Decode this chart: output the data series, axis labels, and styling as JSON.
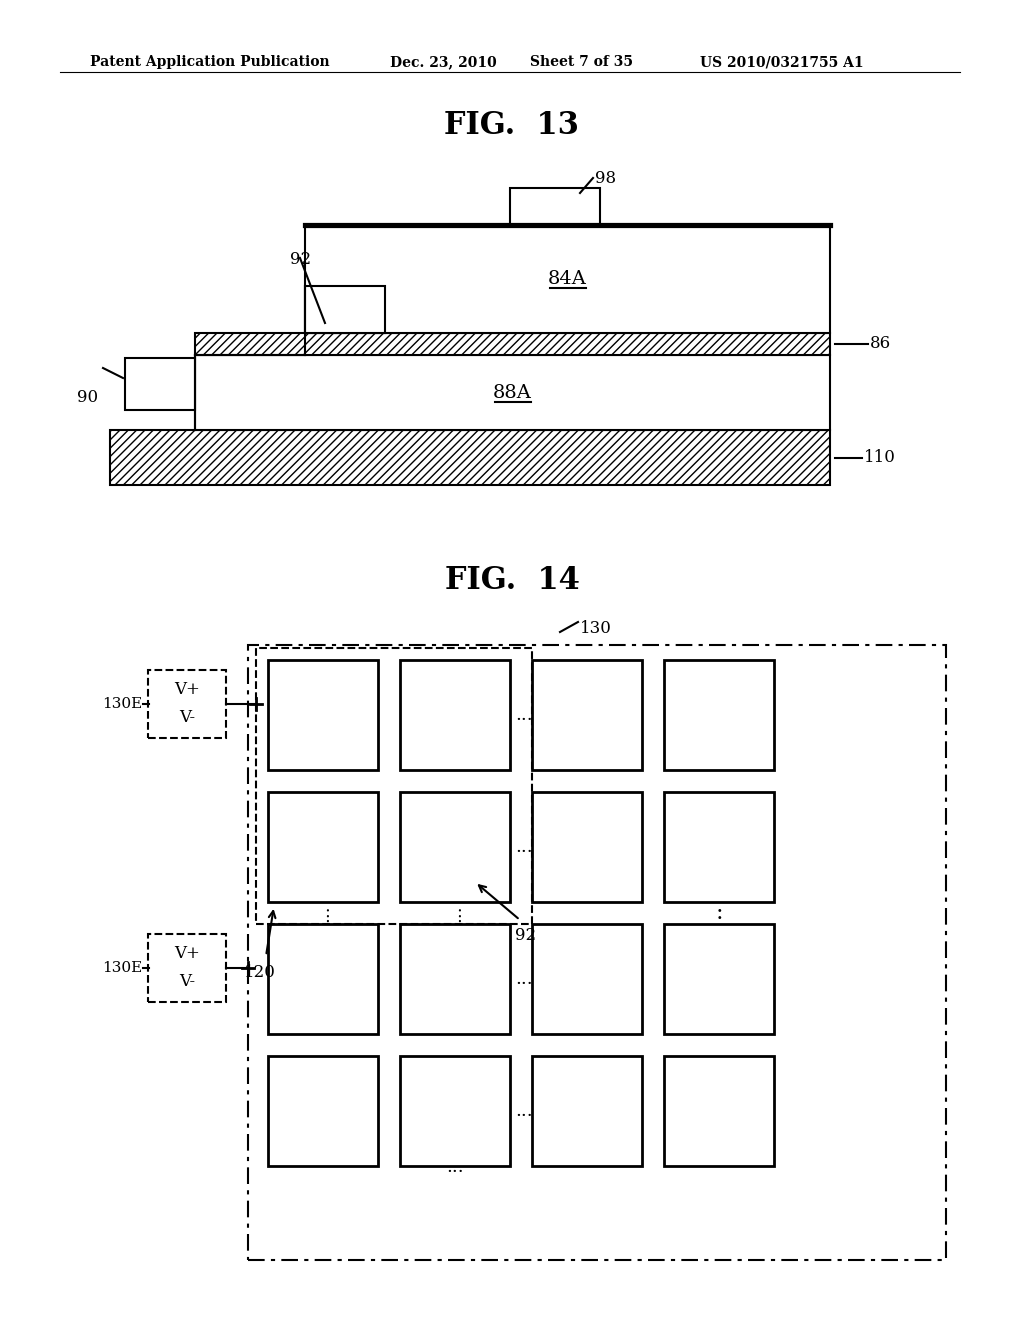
{
  "bg_color": "#ffffff",
  "header_text": "Patent Application Publication",
  "header_date": "Dec. 23, 2010",
  "header_sheet": "Sheet 7 of 35",
  "header_patent": "US 2010/0321755 A1",
  "fig13_title": "FIG.  13",
  "fig14_title": "FIG.  14",
  "line_color": "#000000",
  "hatch_color": "#000000"
}
